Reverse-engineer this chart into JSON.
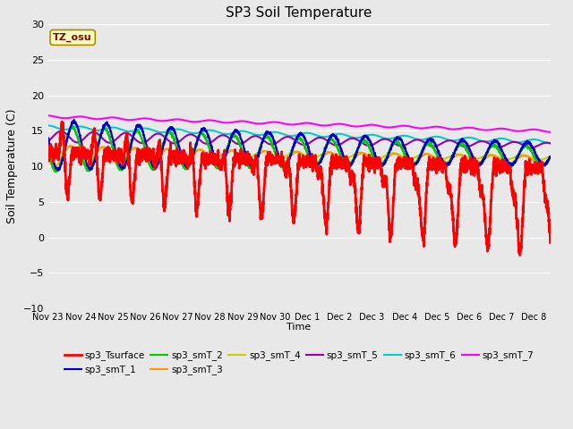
{
  "title": "SP3 Soil Temperature",
  "xlabel": "Time",
  "ylabel": "Soil Temperature (C)",
  "ylim": [
    -10,
    30
  ],
  "background_color": "#e8e8e8",
  "tz_label": "TZ_osu",
  "x_tick_labels": [
    "Nov 23",
    "Nov 24",
    "Nov 25",
    "Nov 26",
    "Nov 27",
    "Nov 28",
    "Nov 29",
    "Nov 30",
    "Dec 1",
    "Dec 2",
    "Dec 3",
    "Dec 4",
    "Dec 5",
    "Dec 6",
    "Dec 7",
    "Dec 8"
  ],
  "series": {
    "sp3_Tsurface": {
      "color": "#ff0000",
      "lw": 2.0
    },
    "sp3_smT_1": {
      "color": "#0000cc",
      "lw": 1.5
    },
    "sp3_smT_2": {
      "color": "#00cc00",
      "lw": 1.5
    },
    "sp3_smT_3": {
      "color": "#ff9900",
      "lw": 1.5
    },
    "sp3_smT_4": {
      "color": "#cccc00",
      "lw": 1.5
    },
    "sp3_smT_5": {
      "color": "#9900aa",
      "lw": 1.5
    },
    "sp3_smT_6": {
      "color": "#00cccc",
      "lw": 1.5
    },
    "sp3_smT_7": {
      "color": "#ff00ff",
      "lw": 1.5
    }
  },
  "legend_order": [
    "sp3_Tsurface",
    "sp3_smT_1",
    "sp3_smT_2",
    "sp3_smT_3",
    "sp3_smT_4",
    "sp3_smT_5",
    "sp3_smT_6",
    "sp3_smT_7"
  ]
}
